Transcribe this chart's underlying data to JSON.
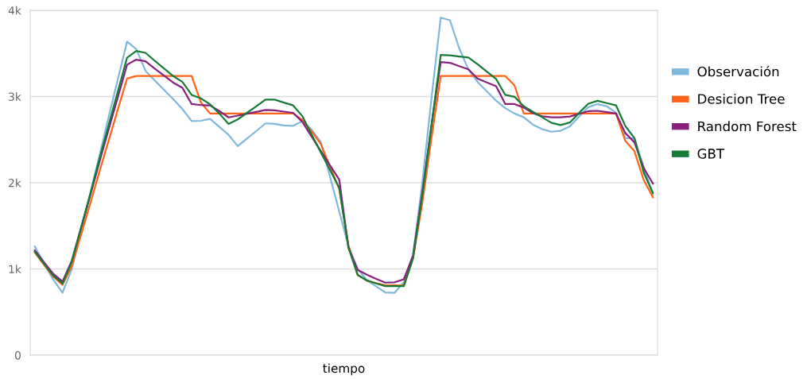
{
  "chart_data": {
    "type": "line",
    "xlabel": "tiempo",
    "categories": [
      null,
      null,
      null,
      null,
      null,
      null,
      null,
      null,
      null,
      null,
      null,
      null,
      null,
      null,
      null,
      null,
      null,
      null,
      null,
      null,
      null,
      null,
      null,
      null,
      null,
      null,
      null,
      null,
      null,
      null,
      null,
      null,
      null,
      null,
      null,
      null,
      null,
      null,
      null,
      null,
      null,
      null,
      null,
      null,
      null,
      null,
      null,
      null,
      null,
      null,
      null,
      null,
      null,
      null,
      null,
      null,
      null,
      null,
      null,
      null,
      null,
      null,
      null,
      null,
      null,
      null,
      null,
      null
    ],
    "ylim": [
      0,
      4000
    ],
    "yticks": [
      0,
      {
        "value": 1000,
        "label": "1k"
      },
      {
        "value": 2000,
        "label": "2k"
      },
      {
        "value": 3000,
        "label": "3k"
      },
      {
        "value": 4000,
        "label": "4k"
      }
    ],
    "grid": "y",
    "legend": "right",
    "marker": "none",
    "line_style": "solid",
    "series": [
      {
        "name": "Observación",
        "color": "#7fb8dc",
        "values": [
          1260,
          1065,
          876,
          725,
          996,
          1433,
          1871,
          2310,
          2763,
          3200,
          3637,
          3549,
          3298,
          3186,
          3078,
          2970,
          2855,
          2715,
          2719,
          2740,
          2648,
          2556,
          2425,
          2512,
          2599,
          2689,
          2684,
          2664,
          2661,
          2714,
          2616,
          2473,
          2070,
          1666,
          1262,
          999,
          871,
          799,
          727,
          723,
          847,
          1166,
          1997,
          2983,
          3915,
          3885,
          3560,
          3315,
          3169,
          3060,
          2952,
          2865,
          2803,
          2759,
          2673,
          2621,
          2592,
          2603,
          2654,
          2767,
          2877,
          2912,
          2887,
          2812,
          2520,
          2512,
          2184,
          1855
        ]
      },
      {
        "name": "Desicion Tree",
        "color": "#ff6316",
        "values": [
          1192,
          1048,
          910,
          816,
          1032,
          1393,
          1755,
          2128,
          2488,
          2849,
          3209,
          3238,
          3238,
          3238,
          3238,
          3238,
          3238,
          3238,
          2933,
          2803,
          2803,
          2803,
          2803,
          2803,
          2803,
          2803,
          2803,
          2803,
          2803,
          2728,
          2597,
          2450,
          2188,
          1926,
          1273,
          935,
          863,
          835,
          811,
          811,
          811,
          1127,
          1762,
          2523,
          3238,
          3238,
          3238,
          3238,
          3238,
          3238,
          3238,
          3238,
          3129,
          2803,
          2803,
          2803,
          2803,
          2803,
          2803,
          2803,
          2803,
          2803,
          2803,
          2803,
          2486,
          2366,
          2032,
          1831
        ]
      },
      {
        "name": "Random Forest",
        "color": "#8b1f7e",
        "values": [
          1216,
          1077,
          943,
          853,
          1094,
          1471,
          1848,
          2240,
          2617,
          2993,
          3370,
          3428,
          3409,
          3324,
          3243,
          3162,
          3101,
          2913,
          2901,
          2897,
          2832,
          2758,
          2779,
          2801,
          2822,
          2844,
          2839,
          2825,
          2811,
          2706,
          2535,
          2368,
          2202,
          2036,
          1243,
          989,
          934,
          885,
          841,
          845,
          880,
          1156,
          1884,
          2669,
          3400,
          3391,
          3352,
          3315,
          3208,
          3164,
          3119,
          2913,
          2913,
          2872,
          2807,
          2771,
          2760,
          2760,
          2768,
          2800,
          2830,
          2834,
          2819,
          2803,
          2577,
          2469,
          2170,
          1990
        ]
      },
      {
        "name": "GBT",
        "color": "#177a36",
        "values": [
          1200,
          1060,
          923,
          832,
          1083,
          1475,
          1867,
          2275,
          2667,
          3059,
          3451,
          3528,
          3507,
          3415,
          3326,
          3237,
          3169,
          3019,
          2979,
          2909,
          2803,
          2683,
          2735,
          2811,
          2886,
          2965,
          2964,
          2930,
          2897,
          2773,
          2559,
          2353,
          2147,
          1941,
          1248,
          928,
          867,
          832,
          801,
          801,
          801,
          1123,
          1854,
          2668,
          3482,
          3479,
          3465,
          3452,
          3375,
          3289,
          3203,
          3019,
          2997,
          2887,
          2823,
          2759,
          2695,
          2669,
          2699,
          2810,
          2917,
          2950,
          2924,
          2898,
          2660,
          2518,
          2120,
          1883
        ]
      }
    ]
  }
}
